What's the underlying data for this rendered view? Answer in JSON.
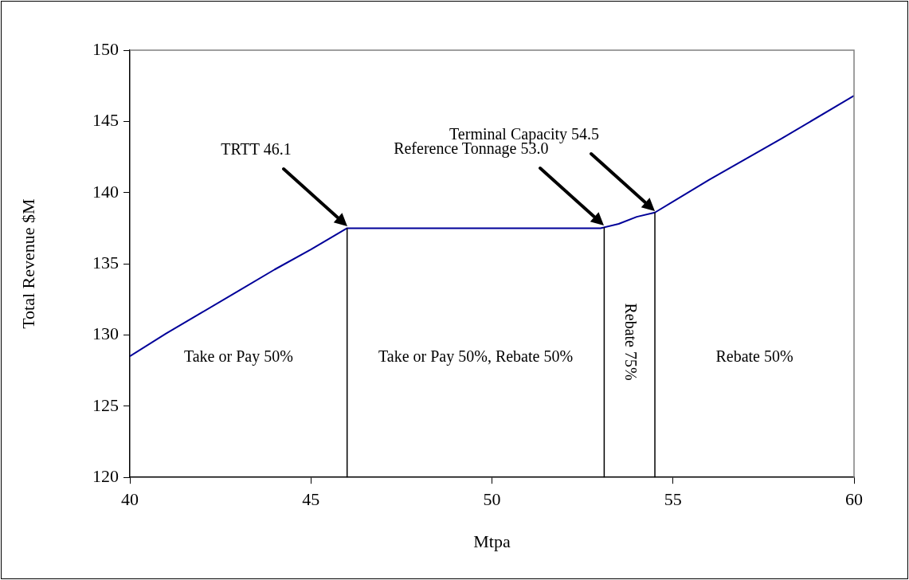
{
  "chart_data": {
    "type": "line",
    "xlabel": "Mtpa",
    "ylabel": "Total Revenue $M",
    "x": [
      40,
      41,
      42,
      43,
      44,
      45,
      46,
      53,
      53.5,
      54,
      54.5,
      56,
      58,
      60
    ],
    "series": [
      {
        "color": "#000099",
        "values": [
          128.5,
          130.1,
          131.6,
          133.1,
          134.6,
          136.0,
          137.5,
          137.5,
          137.8,
          138.3,
          138.6,
          140.9,
          143.8,
          146.8
        ]
      }
    ],
    "xlim": [
      40,
      60
    ],
    "xticks": [
      40,
      45,
      50,
      55,
      60
    ],
    "ylim": [
      120,
      150
    ],
    "yticks": [
      120,
      125,
      130,
      135,
      140,
      145,
      150
    ],
    "ref_lines": [
      {
        "axis": "x",
        "value": 46.0,
        "color": "#000000"
      },
      {
        "axis": "x",
        "value": 53.1,
        "color": "#000000"
      },
      {
        "axis": "x",
        "value": 54.5,
        "color": "#000000"
      }
    ],
    "annotations": [
      "TRTT 46.1",
      "Reference Tonnage 53.0",
      "Terminal Capacity 54.5",
      "Take or Pay 50%",
      "Take or Pay 50%, Rebate 50%",
      "Rebate 75%",
      "Rebate 50%"
    ],
    "grid": false,
    "legend": false,
    "marker": "none",
    "line_style": "solid"
  }
}
